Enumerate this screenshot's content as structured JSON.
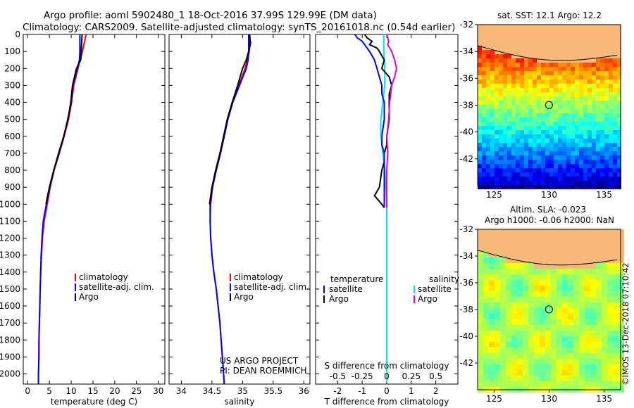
{
  "header": {
    "line1": "Argo profile: aoml 5902480_1 18-Oct-2016 37.99S 129.99E (DM data)",
    "line2": "Climatology: CARS2009. Satellite-adjusted climatology: synTS_20161018.nc (0.54d earlier)"
  },
  "credit": {
    "project": "US ARGO PROJECT",
    "pi": "PI: DEAN ROEMMICH",
    "imos": "©IMOS 13-Dec-2018 07:10:42"
  },
  "colors": {
    "climatology": "#ff0000",
    "satellite": "#0000ff",
    "argo": "#000000",
    "sal_satellite": "#00e5e5",
    "sal_argo": "#e000e0",
    "land": "#f8b878",
    "map_frame": "#000000"
  },
  "depth_ticks": [
    "0",
    "100",
    "200",
    "300",
    "400",
    "500",
    "600",
    "700",
    "800",
    "900",
    "1000",
    "1100",
    "1200",
    "1300",
    "1400",
    "1500",
    "1600",
    "1700",
    "1800",
    "1900",
    "2000"
  ],
  "chart_data": [
    {
      "type": "line",
      "panel": "temperature",
      "xlabel": "temperature (deg C)",
      "ylabel": "",
      "xlim": [
        -1,
        31.5
      ],
      "ylim": [
        2060,
        0
      ],
      "x_ticks": [
        "0",
        "5",
        "10",
        "15",
        "20",
        "25",
        "30"
      ],
      "x_tick_values": [
        0,
        5,
        10,
        15,
        20,
        25,
        30
      ],
      "legend": [
        "climatology",
        "satellite-adj. clim.",
        "Argo"
      ],
      "legend_placement": "lower-right",
      "depth": [
        0,
        50,
        100,
        150,
        200,
        300,
        400,
        500,
        600,
        700,
        800,
        900,
        1000,
        1100,
        1200,
        1300,
        1400,
        1500,
        1600,
        1700,
        1800,
        1900,
        2000,
        2060
      ],
      "series": [
        {
          "name": "climatology",
          "color": "#ff0000",
          "values": [
            13.4,
            13.0,
            12.6,
            12.0,
            11.6,
            10.6,
            10.1,
            9.4,
            8.4,
            7.3,
            6.1,
            5.2,
            4.5,
            3.8,
            3.4,
            3.2,
            3.0,
            2.9,
            2.8,
            2.7,
            2.6,
            2.6,
            2.5,
            2.5
          ]
        },
        {
          "name": "satellite-adj. clim.",
          "color": "#0000ff",
          "values": [
            12.0,
            12.0,
            12.0,
            11.9,
            11.4,
            10.4,
            10.0,
            9.2,
            8.3,
            7.2,
            6.0,
            5.1,
            4.3,
            3.6,
            3.3,
            3.1,
            3.0,
            2.9,
            2.8,
            2.7,
            2.6,
            2.6,
            2.5,
            2.5
          ]
        },
        {
          "name": "Argo",
          "color": "#000000",
          "values": [
            12.5,
            12.4,
            12.3,
            12.2,
            11.2,
            10.3,
            9.9,
            9.3,
            8.3,
            7.1,
            6.0,
            5.0,
            4.2
          ]
        }
      ]
    },
    {
      "type": "line",
      "panel": "salinity",
      "xlabel": "salinity",
      "ylabel": "",
      "xlim": [
        33.8,
        36.1
      ],
      "ylim": [
        2060,
        0
      ],
      "x_ticks": [
        "34",
        "34.5",
        "35",
        "35.5",
        "36"
      ],
      "x_tick_values": [
        34,
        34.5,
        35,
        35.5,
        36
      ],
      "legend": [
        "climatology",
        "satellite-adj. clim.",
        "Argo"
      ],
      "legend_placement": "lower-right",
      "depth": [
        0,
        50,
        100,
        150,
        200,
        300,
        400,
        500,
        600,
        700,
        800,
        900,
        1000,
        1100,
        1200,
        1300,
        1400,
        1500,
        1600,
        1700,
        1800,
        1900,
        2000,
        2060
      ],
      "series": [
        {
          "name": "climatology",
          "color": "#ff0000",
          "values": [
            35.12,
            35.12,
            35.11,
            35.08,
            35.04,
            34.94,
            34.84,
            34.76,
            34.7,
            34.64,
            34.57,
            34.51,
            34.48,
            34.47,
            34.48,
            34.5,
            34.53,
            34.57,
            34.6,
            34.63,
            34.65,
            34.67,
            34.69,
            34.7
          ]
        },
        {
          "name": "satellite-adj. clim.",
          "color": "#0000ff",
          "values": [
            35.1,
            35.1,
            35.1,
            35.09,
            35.06,
            34.95,
            34.84,
            34.76,
            34.7,
            34.64,
            34.57,
            34.51,
            34.47,
            34.47,
            34.48,
            34.5,
            34.53,
            34.57,
            34.6,
            34.63,
            34.65,
            34.67,
            34.69,
            34.7
          ]
        },
        {
          "name": "Argo",
          "color": "#000000",
          "values": [
            35.11,
            35.13,
            35.1,
            35.06,
            35.0,
            34.92,
            34.83,
            34.75,
            34.69,
            34.63,
            34.56,
            34.5,
            34.46
          ]
        }
      ]
    },
    {
      "type": "line",
      "panel": "difference",
      "xlabel": "T difference from climatology",
      "xlabel2": "S difference from climatology",
      "ylabel": "",
      "xlim": [
        -2.9,
        2.9
      ],
      "ylim": [
        2060,
        0
      ],
      "x_ticks": [
        "-2",
        "-1",
        "0",
        "1",
        "2"
      ],
      "x_tick_values": [
        -2,
        -1,
        0,
        1,
        2
      ],
      "x2_ticks": [
        "-0.5",
        "-0.25",
        "0",
        "0.25",
        "0.5"
      ],
      "x2_tick_values": [
        -0.5,
        -0.25,
        0,
        0.25,
        0.5
      ],
      "legend_left_title": "temperature",
      "legend_right_title": "salinity",
      "legend_left": [
        "satellite",
        "Argo"
      ],
      "legend_right": [
        "satellite",
        "Argo"
      ],
      "t_depth": [
        0,
        20,
        40,
        60,
        80,
        100,
        150,
        200,
        250,
        300,
        350,
        400,
        500,
        600,
        650,
        700,
        750,
        800,
        900,
        950,
        1000,
        1020
      ],
      "s_depth": [
        0,
        20,
        40,
        60,
        80,
        100,
        150,
        200,
        250,
        300,
        400,
        500,
        600,
        700,
        800,
        900,
        1000,
        1020
      ],
      "s_depth_long": [
        0,
        100,
        200,
        300,
        400,
        500,
        600,
        700,
        800,
        900,
        1000,
        1100,
        1200,
        1300,
        1400,
        1500,
        1600,
        1700,
        1800,
        1900,
        2000,
        2050
      ],
      "series": [
        {
          "name": "satellite",
          "quantity": "temperature",
          "color": "#0000ff",
          "values": [
            -1.3,
            -1.2,
            -1.0,
            -0.9,
            -0.8,
            -0.7,
            -0.5,
            -0.4,
            -0.3,
            -0.2,
            -0.2,
            -0.1,
            -0.1,
            -0.2,
            -0.2,
            -0.1,
            -0.1,
            -0.1,
            -0.1,
            -0.1,
            -0.1,
            -0.1
          ]
        },
        {
          "name": "Argo",
          "quantity": "temperature",
          "color": "#000000",
          "values": [
            -0.9,
            -0.8,
            -0.6,
            -0.7,
            -0.4,
            -0.3,
            -0.1,
            -0.2,
            0.1,
            0.2,
            0.1,
            0.1,
            0.1,
            0.0,
            0.0,
            -0.1,
            -0.1,
            -0.2,
            -0.3,
            -0.5,
            -0.2,
            -0.1
          ]
        },
        {
          "name": "satellite",
          "quantity": "salinity",
          "color": "#00e5e5",
          "values": [
            -0.03,
            -0.03,
            -0.02,
            -0.02,
            -0.04,
            -0.06,
            -0.06,
            -0.04,
            -0.02,
            -0.01,
            0.0,
            0.0,
            0.0,
            0.0,
            0.0,
            0.0,
            0.0,
            0.0,
            0.0,
            0.0,
            0.0,
            0.0
          ]
        },
        {
          "name": "Argo",
          "quantity": "salinity",
          "color": "#e000e0",
          "values": [
            0.0,
            0.01,
            0.02,
            0.01,
            0.03,
            0.05,
            0.08,
            0.1,
            0.08,
            0.05,
            0.03,
            0.02,
            0.0,
            0.01,
            0.0,
            0.0,
            0.0,
            0.0
          ]
        }
      ]
    },
    {
      "type": "heatmap",
      "panel": "sst-map",
      "title": "sat. SST: 12.1  Argo: 12.2",
      "x_ticks": [
        "125",
        "130",
        "135"
      ],
      "x_tick_values": [
        125,
        130,
        135
      ],
      "y_ticks": [
        "-32",
        "-34",
        "-36",
        "-38",
        "-40",
        "-42"
      ],
      "y_tick_values": [
        -32,
        -34,
        -36,
        -38,
        -40,
        -42
      ],
      "xlim": [
        123.5,
        136.5
      ],
      "ylim": [
        -44.0,
        -32.0
      ],
      "marker": {
        "lon": 129.99,
        "lat": -37.99
      }
    },
    {
      "type": "heatmap",
      "panel": "sla-map",
      "title": "Altim. SLA: -0.023",
      "subtitle": "Argo h1000: -0.06 h2000: NaN",
      "x_ticks": [
        "125",
        "130",
        "135"
      ],
      "x_tick_values": [
        125,
        130,
        135
      ],
      "y_ticks": [
        "-32",
        "-34",
        "-36",
        "-38",
        "-40",
        "-42"
      ],
      "y_tick_values": [
        -32,
        -34,
        -36,
        -38,
        -40,
        -42
      ],
      "xlim": [
        123.5,
        136.5
      ],
      "ylim": [
        -44.0,
        -32.0
      ],
      "marker": {
        "lon": 129.99,
        "lat": -37.99
      }
    }
  ]
}
